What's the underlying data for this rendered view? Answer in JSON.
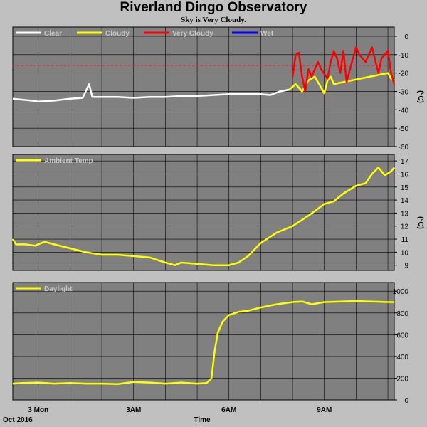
{
  "title": "Riverland Dingo Observatory",
  "subtitle": "Sky is Very Cloudy.",
  "footer": {
    "left": "Oct 2016",
    "center": "Time"
  },
  "chart_data": [
    {
      "type": "line",
      "unit": "(°C)",
      "y_ticks": [
        0,
        -10,
        -20,
        -30,
        -40,
        -50,
        -60
      ],
      "ylim": [
        -60,
        5
      ],
      "x_ticks": [
        "3 Mon",
        "3AM",
        "6AM",
        "9AM"
      ],
      "x_tick_hours": [
        0,
        3,
        6,
        9
      ],
      "x_range_hours": [
        -0.8,
        11.2
      ],
      "threshold": -16,
      "colors": {
        "Clear": "#ffffff",
        "Cloudy": "#ffff00",
        "Very Cloudy": "#ff0000",
        "Wet": "#0000ff",
        "threshold": "#ff2020"
      },
      "series": [
        {
          "name": "Clear",
          "values": [
            [
              -0.8,
              -34
            ],
            [
              -0.5,
              -34.5
            ],
            [
              -0.2,
              -35
            ],
            [
              0,
              -35.5
            ],
            [
              0.5,
              -35
            ],
            [
              1,
              -34
            ],
            [
              1.4,
              -33.5
            ],
            [
              1.6,
              -26
            ],
            [
              1.7,
              -33
            ],
            [
              2,
              -33
            ],
            [
              2.5,
              -33
            ],
            [
              3,
              -33.5
            ],
            [
              3.5,
              -33
            ],
            [
              4,
              -33
            ],
            [
              4.5,
              -32.5
            ],
            [
              5,
              -32.5
            ],
            [
              5.5,
              -32
            ],
            [
              6,
              -31.5
            ],
            [
              6.5,
              -31.5
            ],
            [
              7,
              -31.5
            ],
            [
              7.3,
              -32
            ],
            [
              7.6,
              -30
            ],
            [
              7.9,
              -29
            ]
          ]
        },
        {
          "name": "Cloudy",
          "values": [
            [
              7.9,
              -29
            ],
            [
              8.1,
              -26
            ],
            [
              8.3,
              -30
            ],
            [
              8.5,
              -24
            ],
            [
              8.7,
              -22
            ],
            [
              8.9,
              -28
            ],
            [
              9.0,
              -31
            ],
            [
              9.1,
              -24
            ],
            [
              9.2,
              -22
            ],
            [
              9.3,
              -26
            ],
            [
              11.0,
              -20
            ],
            [
              11.1,
              -23
            ],
            [
              11.2,
              -24
            ]
          ]
        },
        {
          "name": "Very Cloudy",
          "values": [
            [
              8.0,
              -22
            ],
            [
              8.1,
              -10
            ],
            [
              8.2,
              -9
            ],
            [
              8.3,
              -22
            ],
            [
              8.4,
              -30
            ],
            [
              8.5,
              -18
            ],
            [
              8.6,
              -22
            ],
            [
              8.8,
              -14
            ],
            [
              8.9,
              -18
            ],
            [
              9.1,
              -23
            ],
            [
              9.2,
              -14
            ],
            [
              9.3,
              -8
            ],
            [
              9.4,
              -12
            ],
            [
              9.5,
              -20
            ],
            [
              9.6,
              -8
            ],
            [
              9.7,
              -25
            ],
            [
              9.9,
              -12
            ],
            [
              10.0,
              -6
            ],
            [
              10.1,
              -10
            ],
            [
              10.3,
              -14
            ],
            [
              10.5,
              -6
            ],
            [
              10.7,
              -20
            ],
            [
              10.8,
              -12
            ],
            [
              10.9,
              -10
            ],
            [
              11.0,
              -8
            ],
            [
              11.1,
              -20
            ],
            [
              11.2,
              -26
            ]
          ]
        },
        {
          "name": "Wet",
          "values": []
        }
      ]
    },
    {
      "type": "line",
      "unit": "(°C)",
      "y_ticks": [
        9,
        10,
        11,
        12,
        13,
        14,
        15,
        16,
        17
      ],
      "ylim": [
        8.6,
        17.5
      ],
      "x_ticks": [
        "3 Mon",
        "3AM",
        "6AM",
        "9AM"
      ],
      "x_tick_hours": [
        0,
        3,
        6,
        9
      ],
      "x_range_hours": [
        -0.8,
        11.2
      ],
      "series": [
        {
          "name": "Ambient Temp",
          "color": "#ffff00",
          "values": [
            [
              -0.8,
              11.0
            ],
            [
              -0.7,
              10.6
            ],
            [
              -0.4,
              10.6
            ],
            [
              -0.1,
              10.5
            ],
            [
              0.2,
              10.8
            ],
            [
              0.5,
              10.6
            ],
            [
              1,
              10.3
            ],
            [
              1.5,
              10.0
            ],
            [
              2,
              9.8
            ],
            [
              2.5,
              9.8
            ],
            [
              3,
              9.7
            ],
            [
              3.5,
              9.6
            ],
            [
              4,
              9.2
            ],
            [
              4.3,
              9.0
            ],
            [
              4.5,
              9.2
            ],
            [
              5,
              9.1
            ],
            [
              5.5,
              9.0
            ],
            [
              6,
              9.0
            ],
            [
              6.3,
              9.2
            ],
            [
              6.6,
              9.7
            ],
            [
              7,
              10.7
            ],
            [
              7.5,
              11.5
            ],
            [
              8,
              12.0
            ],
            [
              8.5,
              12.8
            ],
            [
              9,
              13.7
            ],
            [
              9.3,
              13.9
            ],
            [
              9.6,
              14.5
            ],
            [
              10,
              15.1
            ],
            [
              10.3,
              15.3
            ],
            [
              10.5,
              16.0
            ],
            [
              10.7,
              16.5
            ],
            [
              10.9,
              15.9
            ],
            [
              11.1,
              16.2
            ],
            [
              11.2,
              16.5
            ]
          ]
        }
      ]
    },
    {
      "type": "line",
      "unit": "",
      "y_ticks": [
        0,
        200,
        400,
        600,
        800,
        1000
      ],
      "ylim": [
        0,
        1080
      ],
      "x_ticks": [
        "3 Mon",
        "3AM",
        "6AM",
        "9AM"
      ],
      "x_tick_hours": [
        0,
        3,
        6,
        9
      ],
      "x_range_hours": [
        -0.8,
        11.2
      ],
      "series": [
        {
          "name": "Daylight",
          "color": "#ffff00",
          "values": [
            [
              -0.8,
              150
            ],
            [
              -0.5,
              155
            ],
            [
              0,
              160
            ],
            [
              0.5,
              150
            ],
            [
              1,
              155
            ],
            [
              1.5,
              150
            ],
            [
              2,
              150
            ],
            [
              2.5,
              145
            ],
            [
              3,
              165
            ],
            [
              3.5,
              160
            ],
            [
              4,
              150
            ],
            [
              4.5,
              160
            ],
            [
              5,
              150
            ],
            [
              5.3,
              155
            ],
            [
              5.45,
              200
            ],
            [
              5.55,
              450
            ],
            [
              5.65,
              620
            ],
            [
              5.8,
              720
            ],
            [
              6,
              780
            ],
            [
              6.3,
              810
            ],
            [
              6.6,
              820
            ],
            [
              7,
              850
            ],
            [
              7.5,
              880
            ],
            [
              8,
              900
            ],
            [
              8.3,
              905
            ],
            [
              8.6,
              880
            ],
            [
              9,
              900
            ],
            [
              9.5,
              905
            ],
            [
              10,
              910
            ],
            [
              10.5,
              905
            ],
            [
              11,
              900
            ],
            [
              11.2,
              900
            ]
          ]
        }
      ]
    }
  ]
}
